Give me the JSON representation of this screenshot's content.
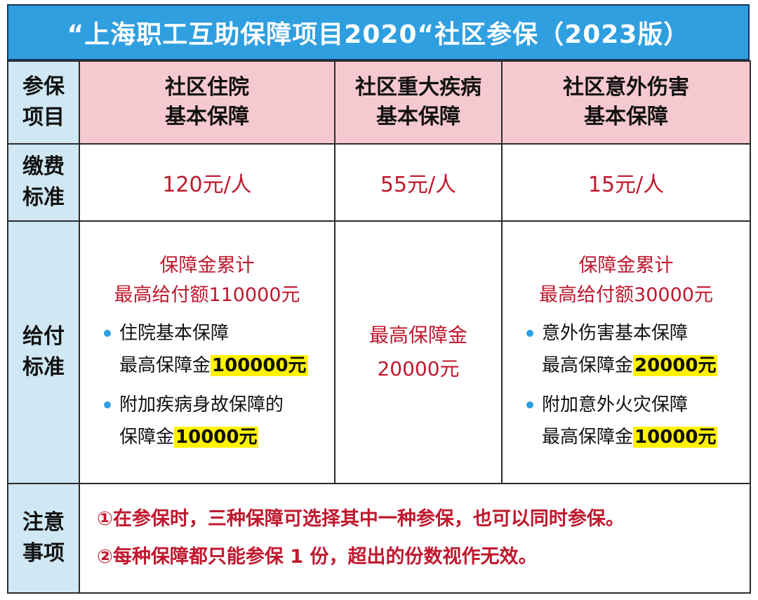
{
  "title": "“上海职工互助保障项目2020“社区参保（2023版）",
  "row_labels": {
    "insurance_item": [
      "参保",
      "项目"
    ],
    "fee_standard": [
      "缴费",
      "标准"
    ],
    "payout_standard": [
      "给付",
      "标准"
    ],
    "notes": [
      "注意",
      "事项"
    ]
  },
  "columns": [
    {
      "header": [
        "社区住院",
        "基本保障"
      ],
      "fee": "120元/人",
      "payout_lines": [
        "保障金累计",
        "最高给付额110000元"
      ],
      "items": [
        {
          "line1": "住院基本保障",
          "line2_prefix": "最高保障金",
          "highlight": "100000元"
        },
        {
          "line1": "附加疾病身故保障的",
          "line2_prefix": "保障金",
          "highlight": "10000元"
        }
      ]
    },
    {
      "header": [
        "社区重大疾病",
        "基本保障"
      ],
      "fee": "55元/人",
      "payout_lines": [
        "最高保障金",
        "20000元"
      ]
    },
    {
      "header": [
        "社区意外伤害",
        "基本保障"
      ],
      "fee": "15元/人",
      "payout_lines": [
        "保障金累计",
        "最高给付额30000元"
      ],
      "items": [
        {
          "line1": "意外伤害基本保障",
          "line2_prefix": "最高保障金",
          "highlight": "20000元"
        },
        {
          "line1": "附加意外火灾保障",
          "line2_prefix": "最高保障金",
          "highlight": "10000元"
        }
      ]
    }
  ],
  "notes": [
    "①在参保时，三种保障可选择其中一种参保，也可以同时参保。",
    "②每种保障都只能参保 1 份，超出的份数视作无效。"
  ]
}
